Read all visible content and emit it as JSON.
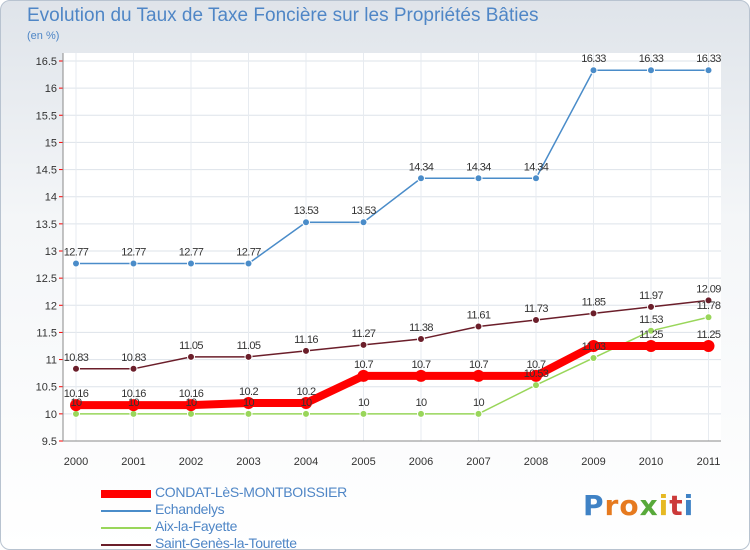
{
  "title": "Evolution du Taux de Taxe Foncière sur les Propriétés Bâties",
  "unit_label": "(en %)",
  "brand": {
    "name": "Proxiti",
    "letter_colors": [
      "#3f82c5",
      "#e67a1f",
      "#e67a1f",
      "#58a93a",
      "#e6b923",
      "#cc3a3a",
      "#3f82c5"
    ]
  },
  "chart_data": {
    "type": "line",
    "title": "Evolution du Taux de Taxe Foncière sur les Propriétés Bâties",
    "ylabel": "(en %)",
    "x": [
      "2000",
      "2001",
      "2002",
      "2003",
      "2004",
      "2005",
      "2006",
      "2007",
      "2008",
      "2009",
      "2010",
      "2011"
    ],
    "ylim": [
      9.5,
      16.5
    ],
    "yticks": [
      "9.5",
      "10",
      "10.5",
      "11",
      "11.5",
      "12",
      "12.5",
      "13",
      "13.5",
      "14",
      "14.5",
      "15",
      "15.5",
      "16",
      "16.5"
    ],
    "grid": true,
    "legend_position": "bottom-left",
    "series": [
      {
        "name": "CONDAT-LèS-MONTBOISSIER",
        "color": "#ff0000",
        "values": [
          10.16,
          10.16,
          10.16,
          10.2,
          10.2,
          10.7,
          10.7,
          10.7,
          10.7,
          11.25,
          11.25,
          11.25
        ],
        "labels": [
          "10.16",
          "10.16",
          "10.16",
          "10.2",
          "10.2",
          "10.7",
          "10.7",
          "10.7",
          "10.7",
          "",
          "11.25",
          "11.25"
        ]
      },
      {
        "name": "Echandelys",
        "color": "#4a8cc9",
        "values": [
          12.77,
          12.77,
          12.77,
          12.77,
          13.53,
          13.53,
          14.34,
          14.34,
          14.34,
          16.33,
          16.33,
          16.33
        ],
        "labels": [
          "12.77",
          "12.77",
          "12.77",
          "12.77",
          "13.53",
          "13.53",
          "14.34",
          "14.34",
          "14.34",
          "16.33",
          "16.33",
          "16.33"
        ]
      },
      {
        "name": "Aix-la-Fayette",
        "color": "#99d65a",
        "values": [
          10,
          10,
          10,
          10,
          10,
          10,
          10,
          10,
          10.53,
          11.03,
          11.53,
          11.78
        ],
        "labels": [
          "10",
          "10",
          "10",
          "10",
          "10",
          "10",
          "10",
          "10",
          "10.53",
          "11.03",
          "11.53",
          "11.78"
        ]
      },
      {
        "name": "Saint-Genès-la-Tourette",
        "color": "#6b1e2a",
        "values": [
          10.83,
          10.83,
          11.05,
          11.05,
          11.16,
          11.27,
          11.38,
          11.61,
          11.73,
          11.85,
          11.97,
          12.09
        ],
        "labels": [
          "10.83",
          "10.83",
          "11.05",
          "11.05",
          "11.16",
          "11.27",
          "11.38",
          "11.61",
          "11.73",
          "11.85",
          "11.97",
          "12.09"
        ]
      }
    ]
  }
}
